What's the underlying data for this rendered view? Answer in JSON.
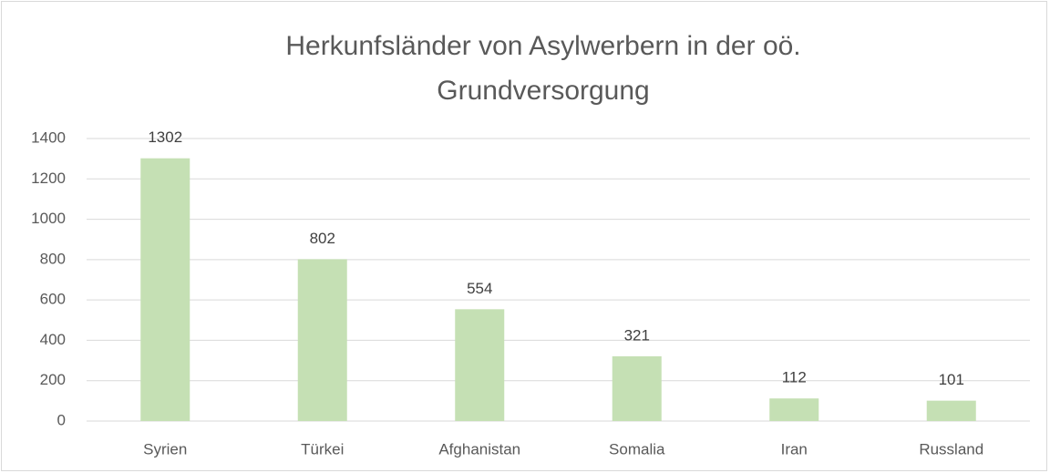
{
  "chart_data": {
    "type": "bar",
    "title": [
      "Herkunfsländer von Asylwerbern in der oö.",
      "Grundversorgung"
    ],
    "categories": [
      "Syrien",
      "Türkei",
      "Afghanistan",
      "Somalia",
      "Iran",
      "Russland"
    ],
    "values": [
      1302,
      802,
      554,
      321,
      112,
      101
    ],
    "color": "#c5e0b4",
    "ylim": [
      0,
      1400
    ],
    "yticks": [
      0,
      200,
      400,
      600,
      800,
      1000,
      1200,
      1400
    ],
    "grid": true,
    "data_labels": true
  }
}
